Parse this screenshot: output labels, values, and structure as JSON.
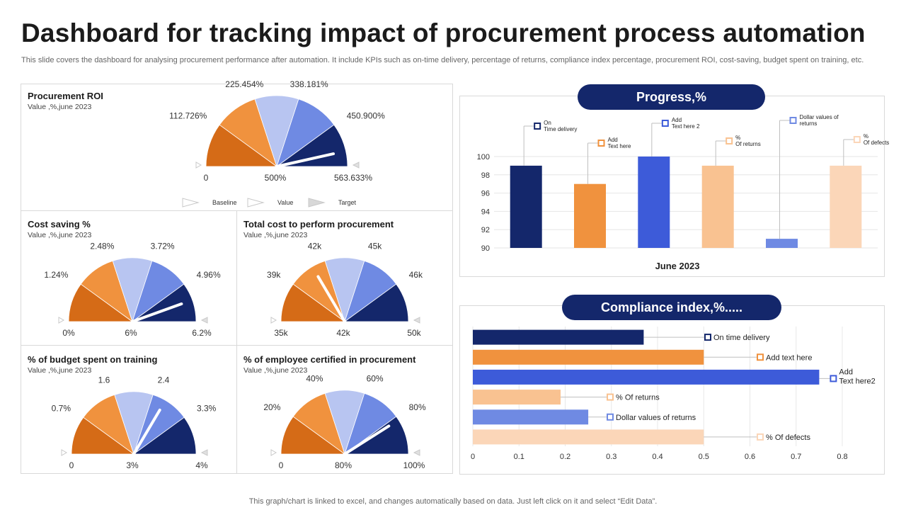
{
  "header": {
    "title": "Dashboard for tracking impact of procurement process automation",
    "subtitle": "This slide covers the dashboard for analysing procurement performance after automation. It include KPIs such as on-time delivery, percentage of returns, compliance index percentage, procurement ROI, cost-saving, budget spent on training, etc."
  },
  "footer": "This graph/chart is linked to excel,  and changes automatically based on data. Just left click on it and select “Edit Data”.",
  "colors": {
    "navy": "#14276b",
    "orange_dark": "#d56b17",
    "orange": "#f0923e",
    "lavender": "#b8c5f1",
    "periwinkle": "#6f8ae3",
    "royal_blue": "#3d5bd9",
    "peach": "#f9c291",
    "light_peach": "#fbd6b8",
    "needle": "#ffffff"
  },
  "gauge_legend": {
    "baseline": "Baseline",
    "value": "Value",
    "target": "Target"
  },
  "chart_data": [
    {
      "type": "gauge",
      "id": "procurement_roi",
      "title": "Procurement ROI",
      "subtitle": "Value ,%,june 2023",
      "min_label": "0",
      "center_label": "500%",
      "max_label": "563.633%",
      "segment_labels": [
        "112.726%",
        "225.454%",
        "338.181%",
        "450.900%"
      ],
      "needle_fraction": 0.93
    },
    {
      "type": "gauge",
      "id": "cost_saving",
      "title": "Cost saving %",
      "subtitle": "Value ,%,june 2023",
      "min_label": "0%",
      "center_label": "6%",
      "max_label": "6.2%",
      "segment_labels": [
        "1.24%",
        "2.48%",
        "3.72%",
        "4.96%"
      ],
      "needle_fraction": 0.89
    },
    {
      "type": "gauge",
      "id": "total_cost",
      "title": "Total cost to perform procurement",
      "subtitle": "Value ,%,june 2023",
      "min_label": "35k",
      "center_label": "42k",
      "max_label": "50k",
      "segment_labels": [
        "39k",
        "42k",
        "45k",
        "46k"
      ],
      "needle_fraction": 0.33
    },
    {
      "type": "gauge",
      "id": "budget_training",
      "title": "% of budget spent on training",
      "subtitle": "Value ,%,june 2023",
      "min_label": "0",
      "center_label": "3%",
      "max_label": "4%",
      "segment_labels": [
        "0.7%",
        "1.6",
        "2.4",
        "3.3%"
      ],
      "needle_fraction": 0.67
    },
    {
      "type": "gauge",
      "id": "employee_certified",
      "title": "% of employee certified in procurement",
      "subtitle": "Value ,%,june 2023",
      "min_label": "0",
      "center_label": "80%",
      "max_label": "100%",
      "segment_labels": [
        "20%",
        "40%",
        "60%",
        "80%"
      ],
      "needle_fraction": 0.82
    },
    {
      "type": "bar",
      "id": "progress",
      "title": "Progress,%",
      "xlabel": "June 2023",
      "ylim": [
        90,
        100
      ],
      "yticks": [
        90,
        92,
        94,
        96,
        98,
        100
      ],
      "categories": [
        "On Time delivery",
        "Add Text here",
        "Add Text here 2",
        "% Of returns",
        "Dollar values of returns",
        "% Of defects"
      ],
      "label_lines": [
        [
          "On",
          "Time delivery"
        ],
        [
          "Add",
          "Text here"
        ],
        [
          "Add",
          "Text here 2"
        ],
        [
          "%",
          "Of returns"
        ],
        [
          "Dollar values of",
          "returns"
        ],
        [
          "%",
          "Of defects"
        ]
      ],
      "values": [
        99,
        97,
        100,
        99,
        91,
        99
      ],
      "colors": [
        "#14276b",
        "#f0923e",
        "#3d5bd9",
        "#f9c291",
        "#6f8ae3",
        "#fbd6b8"
      ]
    },
    {
      "type": "bar",
      "orientation": "horizontal",
      "id": "compliance_index",
      "title": "Compliance index,%.....",
      "xlim": [
        0,
        0.8
      ],
      "xticks": [
        "0",
        "0.1",
        "0.2",
        "0.3",
        "0.4",
        "0.5",
        "0.6",
        "0.7",
        "0.8"
      ],
      "categories": [
        "On time delivery",
        "Add text here",
        "Add Text here2",
        "% Of returns",
        "Dollar values of returns",
        "% Of defects"
      ],
      "label_lines": [
        [
          "On time delivery"
        ],
        [
          "Add text here"
        ],
        [
          "Add",
          "Text here2"
        ],
        [
          "% Of returns"
        ],
        [
          "Dollar values of returns"
        ],
        [
          "% Of defects"
        ]
      ],
      "values": [
        0.37,
        0.5,
        0.75,
        0.19,
        0.25,
        0.5
      ],
      "colors": [
        "#14276b",
        "#f0923e",
        "#3d5bd9",
        "#f9c291",
        "#6f8ae3",
        "#fbd6b8"
      ]
    }
  ]
}
